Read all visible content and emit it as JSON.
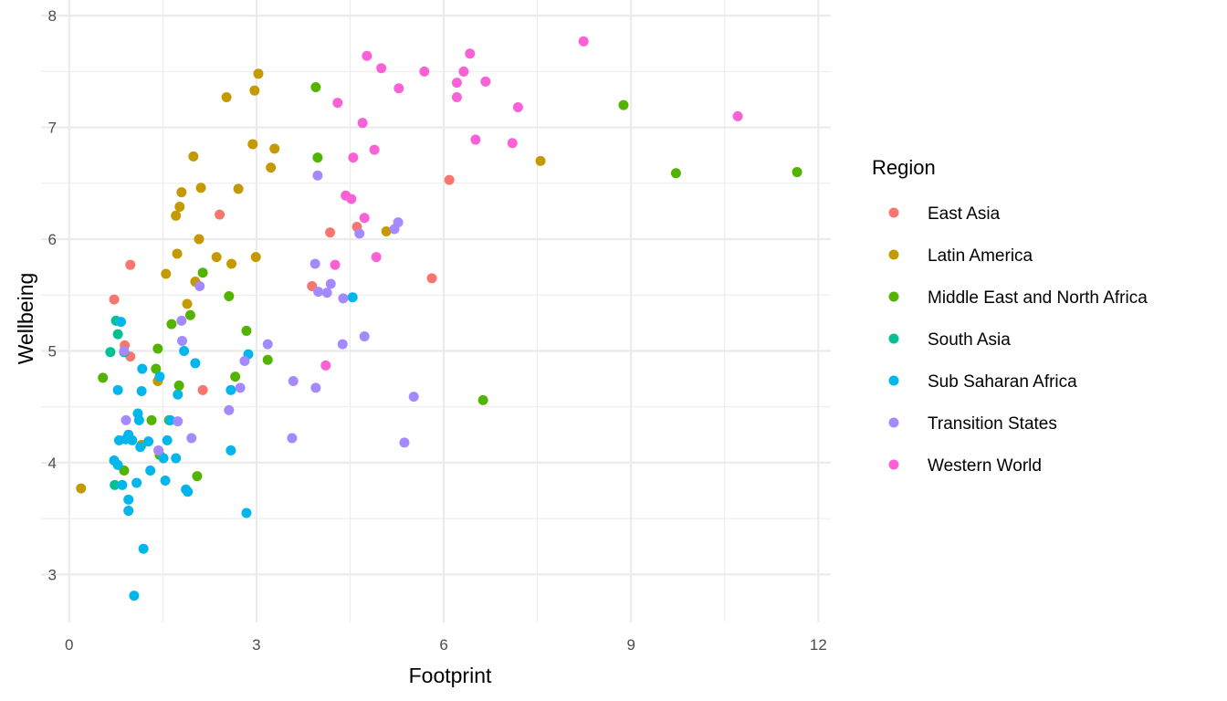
{
  "chart_data": {
    "type": "scatter",
    "title": "",
    "xlabel": "Footprint",
    "ylabel": "Wellbeing",
    "xlim": [
      -0.45,
      12.2
    ],
    "ylim": [
      2.57,
      8.14
    ],
    "xticks": [
      0,
      3,
      6,
      9,
      12
    ],
    "yticks": [
      3,
      4,
      5,
      6,
      7,
      8
    ],
    "grid": true,
    "legend": {
      "title": "Region",
      "placement": "right"
    },
    "series": [
      {
        "name": "East Asia",
        "color": "#F8766D",
        "points": [
          [
            2.41,
            6.22
          ],
          [
            0.98,
            5.77
          ],
          [
            0.72,
            5.46
          ],
          [
            0.98,
            4.95
          ],
          [
            0.89,
            5.05
          ],
          [
            2.14,
            4.65
          ],
          [
            4.61,
            6.11
          ],
          [
            4.18,
            6.06
          ],
          [
            3.89,
            5.58
          ],
          [
            6.09,
            6.53
          ],
          [
            5.81,
            5.65
          ]
        ]
      },
      {
        "name": "Latin America",
        "color": "#C49A00",
        "points": [
          [
            3.03,
            7.48
          ],
          [
            2.97,
            7.33
          ],
          [
            2.52,
            7.27
          ],
          [
            1.99,
            6.74
          ],
          [
            2.94,
            6.85
          ],
          [
            3.29,
            6.81
          ],
          [
            3.23,
            6.64
          ],
          [
            7.55,
            6.7
          ],
          [
            1.8,
            6.42
          ],
          [
            2.11,
            6.46
          ],
          [
            2.71,
            6.45
          ],
          [
            1.77,
            6.29
          ],
          [
            1.71,
            6.21
          ],
          [
            2.08,
            6.0
          ],
          [
            1.73,
            5.87
          ],
          [
            2.36,
            5.84
          ],
          [
            2.99,
            5.84
          ],
          [
            2.6,
            5.78
          ],
          [
            1.55,
            5.69
          ],
          [
            2.02,
            5.62
          ],
          [
            1.89,
            5.42
          ],
          [
            5.08,
            6.07
          ],
          [
            1.42,
            4.73
          ],
          [
            0.19,
            3.77
          ],
          [
            1.16,
            4.16
          ]
        ]
      },
      {
        "name": "Middle East and North Africa",
        "color": "#53B400",
        "points": [
          [
            3.95,
            7.36
          ],
          [
            3.98,
            6.73
          ],
          [
            8.88,
            7.2
          ],
          [
            9.72,
            6.59
          ],
          [
            11.66,
            6.6
          ],
          [
            2.14,
            5.7
          ],
          [
            1.94,
            5.32
          ],
          [
            2.56,
            5.49
          ],
          [
            1.64,
            5.24
          ],
          [
            2.84,
            5.18
          ],
          [
            1.42,
            5.02
          ],
          [
            3.18,
            4.92
          ],
          [
            1.39,
            4.84
          ],
          [
            2.66,
            4.77
          ],
          [
            0.54,
            4.76
          ],
          [
            1.76,
            4.69
          ],
          [
            1.32,
            4.38
          ],
          [
            1.6,
            4.38
          ],
          [
            1.45,
            4.07
          ],
          [
            2.05,
            3.88
          ],
          [
            0.88,
            3.93
          ],
          [
            6.63,
            4.56
          ]
        ]
      },
      {
        "name": "South Asia",
        "color": "#00C094",
        "points": [
          [
            0.75,
            5.27
          ],
          [
            0.66,
            4.99
          ],
          [
            0.78,
            5.15
          ],
          [
            0.88,
            4.99
          ],
          [
            0.73,
            3.8
          ]
        ]
      },
      {
        "name": "Sub Saharan Africa",
        "color": "#00B6EB",
        "points": [
          [
            0.83,
            5.26
          ],
          [
            0.78,
            4.65
          ],
          [
            1.17,
            4.84
          ],
          [
            1.45,
            4.77
          ],
          [
            1.16,
            4.64
          ],
          [
            1.84,
            5.0
          ],
          [
            2.02,
            4.89
          ],
          [
            2.87,
            4.97
          ],
          [
            4.54,
            5.48
          ],
          [
            2.59,
            4.65
          ],
          [
            1.74,
            4.61
          ],
          [
            1.1,
            4.44
          ],
          [
            1.12,
            4.38
          ],
          [
            1.62,
            4.38
          ],
          [
            0.95,
            4.25
          ],
          [
            0.91,
            4.21
          ],
          [
            1.01,
            4.2
          ],
          [
            0.8,
            4.2
          ],
          [
            1.27,
            4.19
          ],
          [
            1.57,
            4.2
          ],
          [
            1.14,
            4.14
          ],
          [
            0.72,
            4.02
          ],
          [
            0.78,
            3.98
          ],
          [
            1.51,
            4.04
          ],
          [
            1.71,
            4.04
          ],
          [
            0.85,
            3.8
          ],
          [
            1.08,
            3.82
          ],
          [
            1.3,
            3.93
          ],
          [
            1.54,
            3.84
          ],
          [
            1.87,
            3.76
          ],
          [
            1.9,
            3.74
          ],
          [
            0.95,
            3.67
          ],
          [
            0.95,
            3.57
          ],
          [
            2.59,
            4.11
          ],
          [
            2.84,
            3.55
          ],
          [
            1.19,
            3.23
          ],
          [
            1.04,
            2.81
          ]
        ]
      },
      {
        "name": "Transition States",
        "color": "#A58AFF",
        "points": [
          [
            3.98,
            6.57
          ],
          [
            5.27,
            6.15
          ],
          [
            5.21,
            6.09
          ],
          [
            4.65,
            6.05
          ],
          [
            3.94,
            5.78
          ],
          [
            2.09,
            5.58
          ],
          [
            4.19,
            5.6
          ],
          [
            3.99,
            5.53
          ],
          [
            4.13,
            5.52
          ],
          [
            4.39,
            5.47
          ],
          [
            1.8,
            5.27
          ],
          [
            0.88,
            5.0
          ],
          [
            1.81,
            5.09
          ],
          [
            3.18,
            5.06
          ],
          [
            4.38,
            5.06
          ],
          [
            4.73,
            5.13
          ],
          [
            2.81,
            4.91
          ],
          [
            3.59,
            4.73
          ],
          [
            2.74,
            4.67
          ],
          [
            3.95,
            4.67
          ],
          [
            5.52,
            4.59
          ],
          [
            2.56,
            4.47
          ],
          [
            1.74,
            4.37
          ],
          [
            0.91,
            4.38
          ],
          [
            1.96,
            4.22
          ],
          [
            3.57,
            4.22
          ],
          [
            5.37,
            4.18
          ],
          [
            1.43,
            4.11
          ]
        ]
      },
      {
        "name": "Western World",
        "color": "#FB61D7",
        "points": [
          [
            8.24,
            7.77
          ],
          [
            4.77,
            7.64
          ],
          [
            6.42,
            7.66
          ],
          [
            5.0,
            7.53
          ],
          [
            5.69,
            7.5
          ],
          [
            6.32,
            7.5
          ],
          [
            6.67,
            7.41
          ],
          [
            6.21,
            7.4
          ],
          [
            5.28,
            7.35
          ],
          [
            6.21,
            7.27
          ],
          [
            4.3,
            7.22
          ],
          [
            7.19,
            7.18
          ],
          [
            10.71,
            7.1
          ],
          [
            4.7,
            7.04
          ],
          [
            6.51,
            6.89
          ],
          [
            7.1,
            6.86
          ],
          [
            4.89,
            6.8
          ],
          [
            4.55,
            6.73
          ],
          [
            4.43,
            6.39
          ],
          [
            4.52,
            6.36
          ],
          [
            4.73,
            6.19
          ],
          [
            4.26,
            5.77
          ],
          [
            4.92,
            5.84
          ],
          [
            4.11,
            4.87
          ]
        ]
      }
    ]
  }
}
